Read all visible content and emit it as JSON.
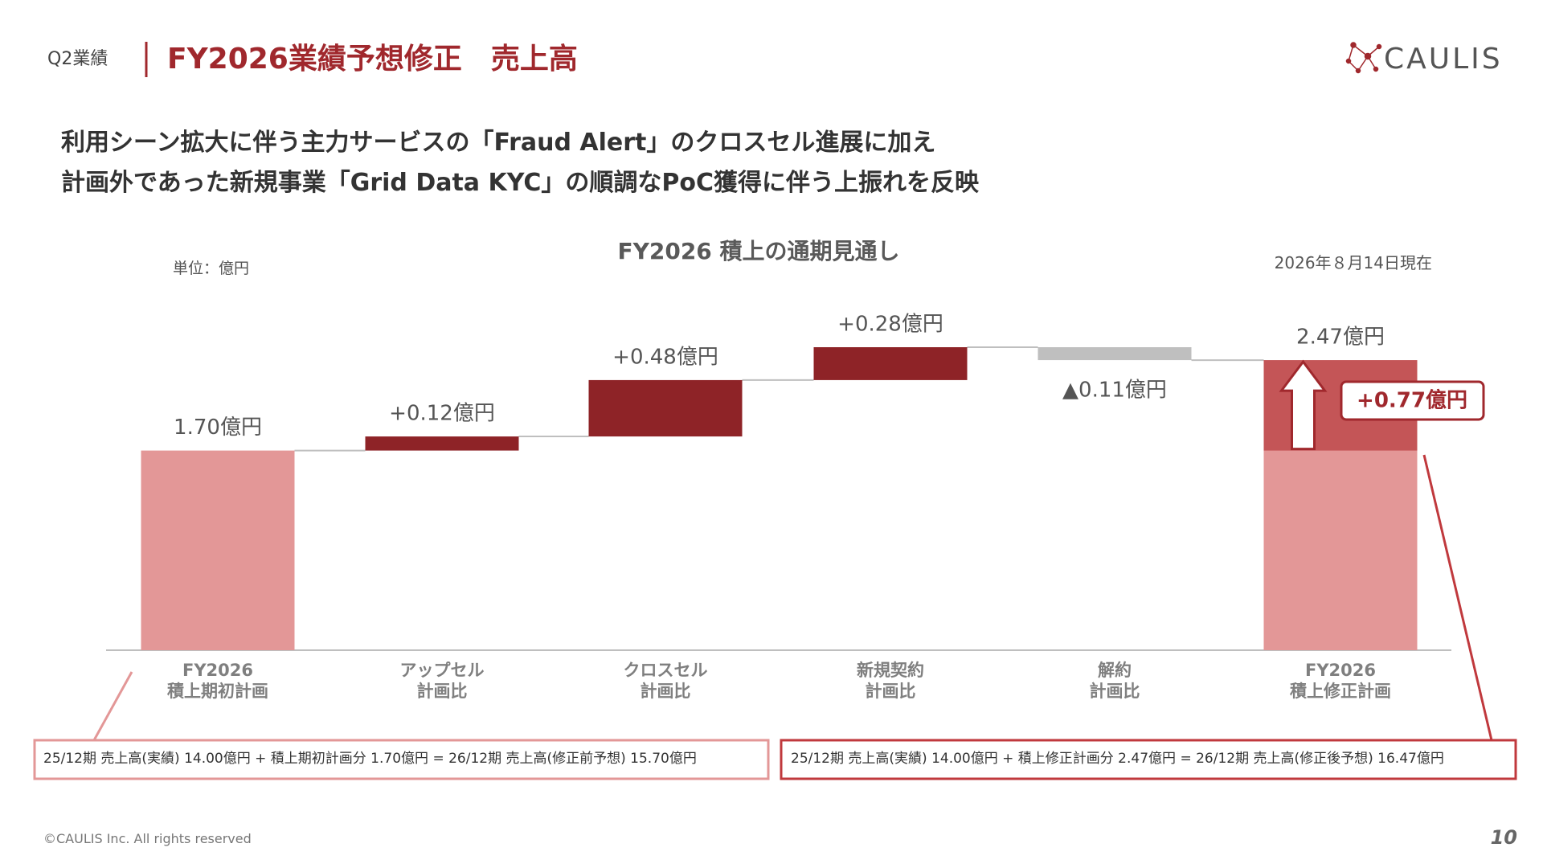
{
  "header": {
    "section": "Q2業績",
    "title": "FY2026業績予想修正　売上高"
  },
  "logo": "CAULIS",
  "lead": [
    "利用シーン拡大に伴う主力サービスの「Fraud Alert」のクロスセル進展に加え",
    "計画外であった新規事業「Grid Data KYC」の順調なPoC獲得に伴う上振れを反映"
  ],
  "chart_data": {
    "type": "waterfall",
    "title": "FY2026 積上の通期見通し",
    "unit": "単位：億円",
    "as_of": "2026年８月14日現在",
    "categories": [
      "FY2026\n積上期初計画",
      "アップセル\n計画比",
      "クロスセル\n計画比",
      "新規契約\n計画比",
      "解約\n計画比",
      "FY2026\n積上修正計画"
    ],
    "measures": [
      "absolute",
      "relative",
      "relative",
      "relative",
      "relative",
      "total"
    ],
    "values": [
      1.7,
      0.12,
      0.48,
      0.28,
      -0.11,
      2.47
    ],
    "value_labels": [
      "1.70億円",
      "+0.12億円",
      "+0.48億円",
      "+0.28億円",
      "▲0.11億円",
      "2.47億円"
    ],
    "colors": {
      "absolute": "#e39797",
      "increase": "#8e2327",
      "decrease": "#bfbfbf",
      "total": "#c45557"
    },
    "annotation": {
      "value": 0.77,
      "label": "+0.77億円"
    }
  },
  "notes": [
    "25/12期 売上高(実績) 14.00億円 + 積上期初計画分 1.70億円 = 26/12期 売上高(修正前予想) 15.70億円",
    "25/12期 売上高(実績) 14.00億円 + 積上修正計画分 2.47億円 = 26/12期 売上高(修正後予想) 16.47億円"
  ],
  "footer": {
    "copyright": "©CAULIS Inc. All rights reserved",
    "page": "10"
  }
}
